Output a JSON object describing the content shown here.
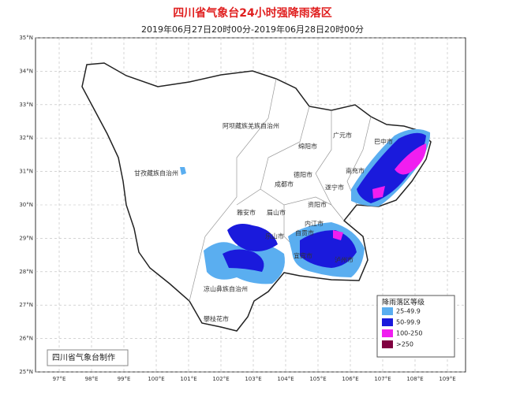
{
  "header": {
    "title": "四川省气象台24小时强降雨落区",
    "subtitle": "2019年06月27日20时00分-2019年06月28日20时00分"
  },
  "lat_labels": [
    "35°N",
    "34°N",
    "33°N",
    "32°N",
    "31°N",
    "30°N",
    "29°N",
    "28°N",
    "27°N",
    "26°N",
    "25°N"
  ],
  "lon_labels": [
    "97°E",
    "98°E",
    "99°E",
    "100°E",
    "101°E",
    "102°E",
    "103°E",
    "104°E",
    "105°E",
    "106°E",
    "107°E",
    "108°E",
    "109°E"
  ],
  "places": [
    "阿坝藏族羌族自治州",
    "广元市",
    "巴中市",
    "绵阳市",
    "甘孜藏族自治州",
    "德阳市",
    "南充市",
    "成都市",
    "遂宁市",
    "资阳市",
    "雅安市",
    "眉山市",
    "内江市",
    "乐山市",
    "自贡市",
    "宜宾市",
    "泸州市",
    "凉山彝族自治州",
    "攀枝花市"
  ],
  "legend": {
    "title": "降雨落区等级",
    "items": [
      {
        "label": "25-49.9",
        "color": "#5aaef0"
      },
      {
        "label": "50-99.9",
        "color": "#1a1adc"
      },
      {
        "label": "100-250",
        "color": "#f01ef0"
      },
      {
        "label": ">250",
        "color": "#800040"
      }
    ]
  },
  "credit": "四川省气象台制作"
}
